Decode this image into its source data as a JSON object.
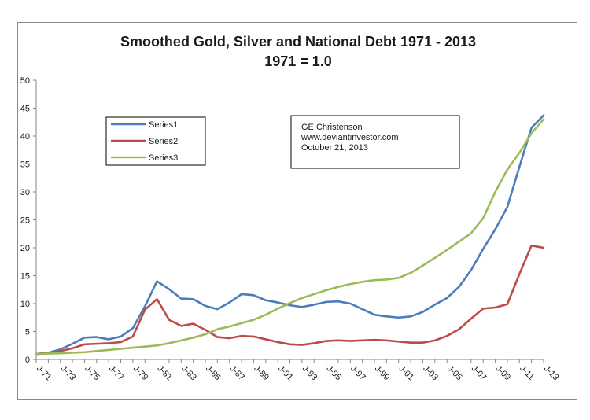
{
  "chart_data": {
    "type": "line",
    "title": "Smoothed Gold, Silver and National Debt 1971 - 2013",
    "subtitle": "1971 = 1.0",
    "xlabel": "",
    "ylabel": "",
    "ylim": [
      0,
      50
    ],
    "yticks": [
      0,
      5,
      10,
      15,
      20,
      25,
      30,
      35,
      40,
      45,
      50
    ],
    "x": [
      "J-71",
      "J-72",
      "J-73",
      "J-74",
      "J-75",
      "J-76",
      "J-77",
      "J-78",
      "J-79",
      "J-80",
      "J-81",
      "J-82",
      "J-83",
      "J-84",
      "J-85",
      "J-86",
      "J-87",
      "J-88",
      "J-89",
      "J-90",
      "J-91",
      "J-92",
      "J-93",
      "J-94",
      "J-95",
      "J-96",
      "J-97",
      "J-98",
      "J-99",
      "J-00",
      "J-01",
      "J-02",
      "J-03",
      "J-04",
      "J-05",
      "J-06",
      "J-07",
      "J-08",
      "J-09",
      "J-10",
      "J-11",
      "J-12",
      "J-13"
    ],
    "tick_labels": [
      "J-71",
      "J-73",
      "J-75",
      "J-77",
      "J-79",
      "J-81",
      "J-83",
      "J-85",
      "J-87",
      "J-89",
      "J-91",
      "J-93",
      "J-95",
      "J-97",
      "J-99",
      "J-01",
      "J-03",
      "J-05",
      "J-07",
      "J-09",
      "J-11",
      "J-13"
    ],
    "series": [
      {
        "name": "Series1",
        "color": "#4a7ebb",
        "values": [
          1.0,
          1.2,
          1.8,
          2.8,
          3.9,
          4.0,
          3.6,
          4.1,
          5.6,
          9.5,
          14.0,
          12.6,
          10.9,
          10.8,
          9.6,
          9.0,
          10.2,
          11.7,
          11.5,
          10.6,
          10.2,
          9.7,
          9.4,
          9.8,
          10.3,
          10.4,
          10.0,
          9.0,
          8.0,
          7.7,
          7.5,
          7.7,
          8.5,
          9.8,
          11.0,
          13.0,
          16.0,
          19.8,
          23.3,
          27.3,
          34.5,
          41.5,
          43.7
        ]
      },
      {
        "name": "Series2",
        "color": "#be4b48",
        "values": [
          1.0,
          1.1,
          1.5,
          2.0,
          2.7,
          2.8,
          2.9,
          3.1,
          4.1,
          8.9,
          10.8,
          7.1,
          6.0,
          6.4,
          5.3,
          4.0,
          3.8,
          4.2,
          4.1,
          3.6,
          3.1,
          2.7,
          2.6,
          2.9,
          3.3,
          3.4,
          3.3,
          3.4,
          3.5,
          3.4,
          3.2,
          3.0,
          3.0,
          3.4,
          4.2,
          5.4,
          7.3,
          9.1,
          9.3,
          9.9,
          15.3,
          20.4,
          20.0
        ]
      },
      {
        "name": "Series3",
        "color": "#9bbb59",
        "values": [
          1.0,
          1.05,
          1.1,
          1.2,
          1.3,
          1.5,
          1.7,
          1.9,
          2.1,
          2.3,
          2.5,
          2.9,
          3.4,
          3.9,
          4.5,
          5.4,
          5.9,
          6.5,
          7.1,
          8.0,
          9.1,
          10.1,
          11.0,
          11.7,
          12.4,
          13.0,
          13.5,
          13.9,
          14.2,
          14.3,
          14.6,
          15.5,
          16.8,
          18.2,
          19.6,
          21.1,
          22.6,
          25.3,
          30.0,
          34.0,
          37.0,
          40.5,
          43.0
        ]
      }
    ],
    "legend_position": "upper-left",
    "grid": false
  },
  "annotation": {
    "lines": [
      "GE Christenson",
      "www.deviantinvestor.com",
      "October 21, 2013"
    ]
  }
}
